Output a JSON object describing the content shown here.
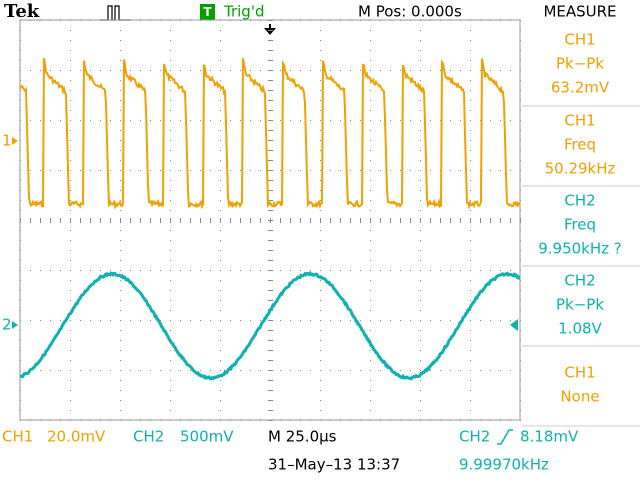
{
  "header": {
    "brand": "Tek",
    "trigger_icon": "T",
    "trigger_status": "Trig'd",
    "position": "M Pos: 0.000s"
  },
  "markers": {
    "ch1": "1",
    "ch2": "2"
  },
  "measure": {
    "title": "MEASURE",
    "items": [
      {
        "source": "CH1",
        "type": "Pk−Pk",
        "value": "63.2mV"
      },
      {
        "source": "CH1",
        "type": "Freq",
        "value": "50.29kHz"
      },
      {
        "source": "CH2",
        "type": "Freq",
        "value": "9.950kHz ?"
      },
      {
        "source": "CH2",
        "type": "Pk−Pk",
        "value": "1.08V"
      },
      {
        "source": "CH1",
        "type": "None"
      }
    ]
  },
  "footer": {
    "ch1_label": "CH1",
    "ch1_scale": "20.0mV",
    "ch2_label": "CH2",
    "ch2_scale": "500mV",
    "timebase": "M 25.0µs",
    "trigger_source": "CH2",
    "trigger_level": "8.18mV",
    "datetime": "31–May–13 13:37",
    "trigger_frequency": "9.99970kHz"
  }
}
